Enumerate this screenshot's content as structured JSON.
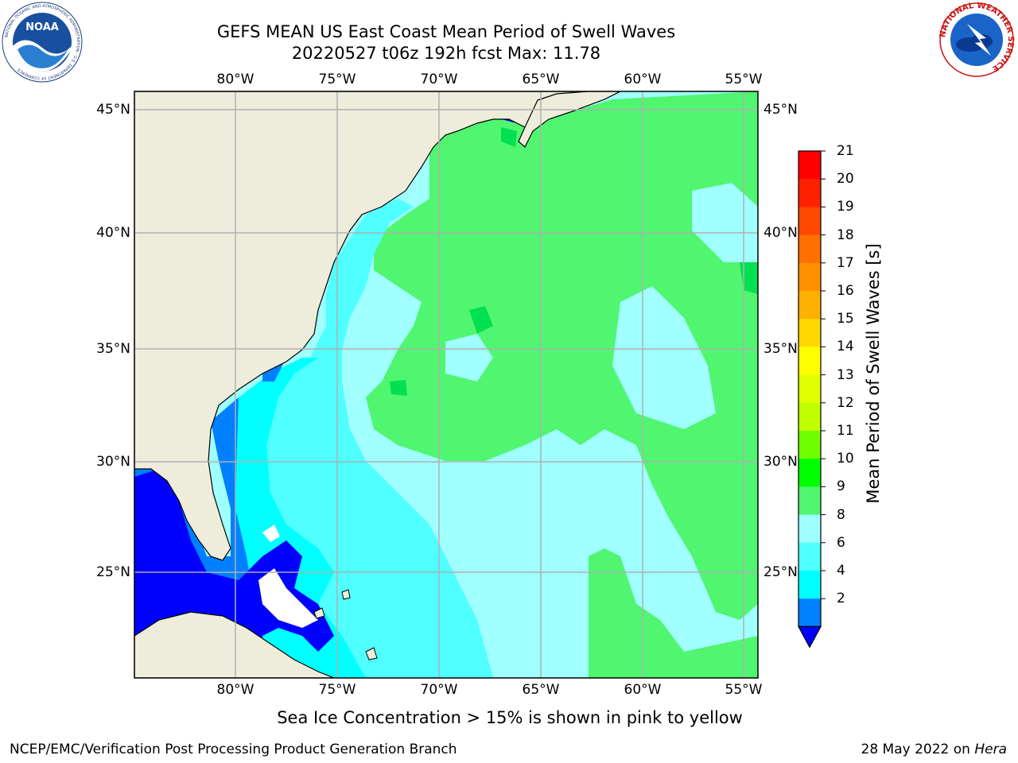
{
  "title": {
    "line1": "GEFS MEAN US East Coast Mean Period of Swell Waves",
    "line2": "20220527 t06z 192h fcst   Max: 11.78"
  },
  "map": {
    "lon_labels": [
      "80°W",
      "75°W",
      "70°W",
      "65°W",
      "60°W",
      "55°W"
    ],
    "lat_labels": [
      "45°N",
      "40°N",
      "35°N",
      "30°N",
      "25°N"
    ],
    "colors": {
      "land": "#EEEDDC",
      "grid": "#B0B0B0",
      "no_data": "#FFFFFF"
    }
  },
  "colorbar": {
    "label": "Mean Period of Swell Waves [s]",
    "ticks": [
      "21",
      "20",
      "19",
      "18",
      "17",
      "16",
      "15",
      "14",
      "13",
      "12",
      "11",
      "10",
      "9",
      "8",
      "6",
      "4",
      "2"
    ],
    "colors": [
      "#FF0000",
      "#FF2000",
      "#FF4800",
      "#FF7000",
      "#FF9000",
      "#FFB000",
      "#FFD800",
      "#FFFF00",
      "#E0FF00",
      "#C0FF00",
      "#70FF00",
      "#00FF00",
      "#50F570",
      "#A0FFFF",
      "#50FFFF",
      "#00FFFF",
      "#0080FF",
      "#0000FF"
    ]
  },
  "logos": {
    "noaa": "NOAA",
    "noaa_ring": "NATIONAL OCEANIC AND ATMOSPHERIC ADMINISTRATION · U.S. DEPARTMENT OF COMMERCE",
    "nws_ring": "NATIONAL WEATHER SERVICE"
  },
  "footnote": "Sea Ice Concentration > 15% is shown in pink to yellow",
  "credit_left": "NCEP/EMC/Verification Post Processing Product Generation Branch",
  "credit_right_date": "28 May 2022 on ",
  "credit_right_host": "Hera"
}
